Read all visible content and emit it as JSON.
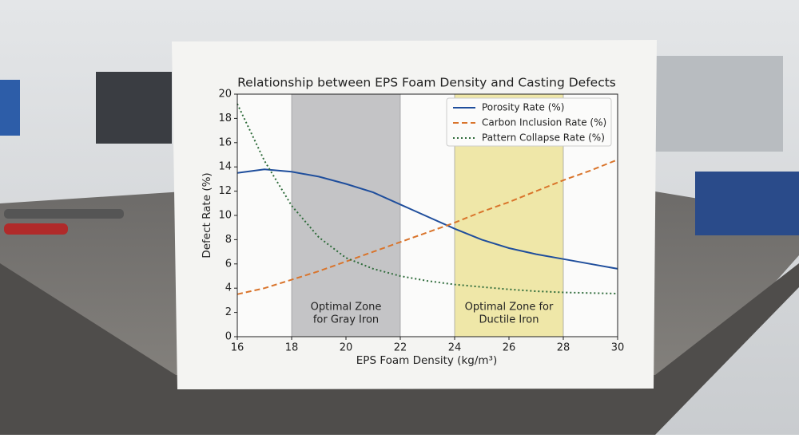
{
  "chart_data": {
    "type": "line",
    "title": "Relationship between EPS Foam Density and Casting Defects",
    "xlabel": "EPS Foam Density (kg/m³)",
    "ylabel": "Defect Rate (%)",
    "x": [
      16,
      17,
      18,
      19,
      20,
      21,
      22,
      23,
      24,
      25,
      26,
      27,
      28,
      29,
      30
    ],
    "series": [
      {
        "name": "Porosity Rate (%)",
        "color": "#1f4e9c",
        "dash": "solid",
        "values": [
          13.5,
          13.8,
          13.6,
          13.2,
          12.6,
          11.9,
          10.9,
          9.9,
          8.9,
          8.0,
          7.3,
          6.8,
          6.4,
          6.0,
          5.6
        ]
      },
      {
        "name": "Carbon Inclusion Rate (%)",
        "color": "#d9742b",
        "dash": "dashed",
        "values": [
          3.5,
          4.0,
          4.7,
          5.4,
          6.2,
          7.0,
          7.8,
          8.6,
          9.4,
          10.3,
          11.1,
          12.0,
          12.9,
          13.7,
          14.6
        ]
      },
      {
        "name": "Pattern Collapse Rate (%)",
        "color": "#2e6b3a",
        "dash": "dotted",
        "values": [
          19.2,
          14.5,
          10.8,
          8.2,
          6.5,
          5.6,
          5.0,
          4.6,
          4.3,
          4.1,
          3.9,
          3.75,
          3.65,
          3.6,
          3.55
        ]
      }
    ],
    "bands": [
      {
        "x0": 18,
        "x1": 22,
        "color": "#c4c4c6",
        "label": [
          "Optimal Zone",
          "for Gray Iron"
        ]
      },
      {
        "x0": 24,
        "x1": 28,
        "color": "#efe7a8",
        "label": [
          "Optimal Zone for",
          "Ductile Iron"
        ]
      }
    ],
    "xlim": [
      16,
      30
    ],
    "xticks": [
      16,
      18,
      20,
      22,
      24,
      26,
      28,
      30
    ],
    "ylim": [
      0,
      20
    ],
    "yticks": [
      0,
      2,
      4,
      6,
      8,
      10,
      12,
      14,
      16,
      18,
      20
    ],
    "legend": "upper right"
  }
}
